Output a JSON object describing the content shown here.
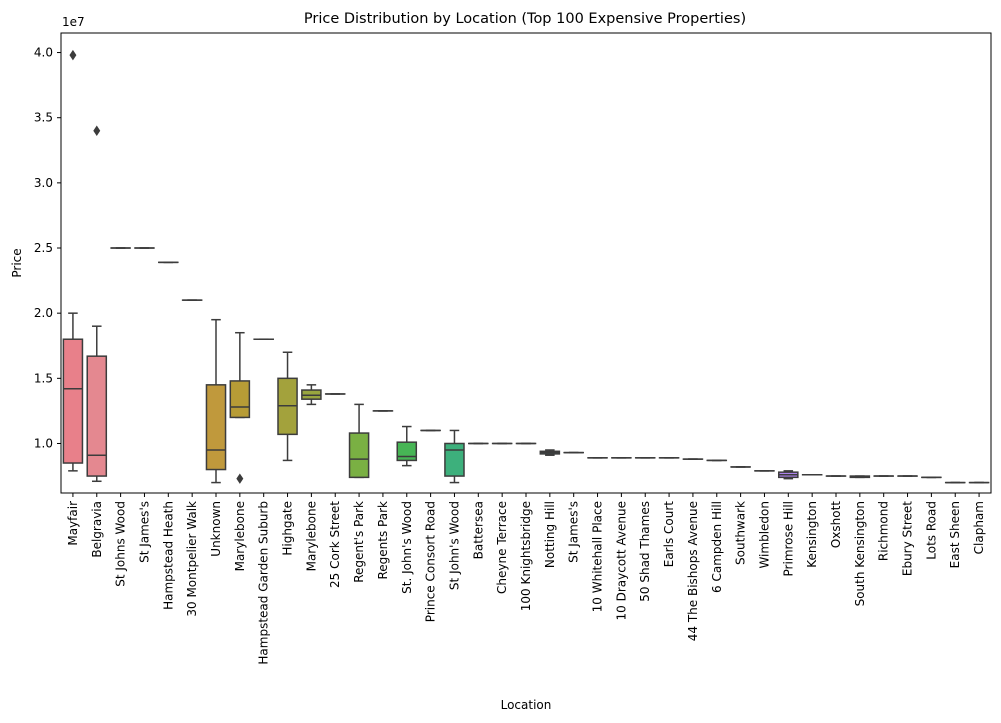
{
  "chart_data": {
    "type": "box",
    "title": "Price Distribution by Location (Top 100 Expensive Properties)",
    "xlabel": "Location",
    "ylabel": "Price",
    "y_offset_label": "1e7",
    "ylim": [
      6200000,
      41500000
    ],
    "yticks": [
      10000000,
      15000000,
      20000000,
      25000000,
      30000000,
      35000000,
      40000000
    ],
    "ytick_labels": [
      "1.0",
      "1.5",
      "2.0",
      "2.5",
      "3.0",
      "3.5",
      "4.0"
    ],
    "grid": false,
    "legend": false,
    "categories": [
      "Mayfair",
      "Belgravia",
      "St Johns Wood",
      "St James's",
      "Hampstead Heath",
      "30 Montpelier Walk",
      "Unknown",
      "Marylebone",
      "Hampstead Garden Suburb",
      "Highgate",
      "Marylebone",
      "25 Cork Street",
      "Regent's Park",
      "Regents Park",
      "St. John's Wood",
      "Prince Consort Road",
      "St John's Wood",
      "Battersea",
      "Cheyne Terrace",
      "100 Knightsbridge",
      "Notting Hill",
      "St James's",
      "10 Whitehall Place",
      "10 Draycott Avenue",
      "50 Shad Thames",
      "Earls Court",
      "44 The Bishops Avenue",
      "6 Campden Hill",
      "Southwark",
      "Wimbledon",
      "Primrose Hill",
      "Kensington",
      "Oxshott",
      "South Kensington",
      "Richmond",
      "Ebury Street",
      "Lots Road",
      "East Sheen",
      "Clapham"
    ],
    "boxes": [
      {
        "whisker_low": 7900000,
        "q1": 8500000,
        "median": 14200000,
        "q3": 18000000,
        "whisker_high": 20000000,
        "outliers": [
          39800000
        ],
        "color": "#e8808a"
      },
      {
        "whisker_low": 7100000,
        "q1": 7500000,
        "median": 9100000,
        "q3": 16700000,
        "whisker_high": 19000000,
        "outliers": [
          34000000
        ],
        "color": "#e48890"
      },
      {
        "whisker_low": 25000000,
        "q1": 25000000,
        "median": 25000000,
        "q3": 25000000,
        "whisker_high": 25000000,
        "outliers": [],
        "color": "#dd8a7c"
      },
      {
        "whisker_low": 25000000,
        "q1": 25000000,
        "median": 25000000,
        "q3": 25000000,
        "whisker_high": 25000000,
        "outliers": [],
        "color": "#d68f6a"
      },
      {
        "whisker_low": 23900000,
        "q1": 23900000,
        "median": 23900000,
        "q3": 23900000,
        "whisker_high": 23900000,
        "outliers": [],
        "color": "#cf935a"
      },
      {
        "whisker_low": 21000000,
        "q1": 21000000,
        "median": 21000000,
        "q3": 21000000,
        "whisker_high": 21000000,
        "outliers": [],
        "color": "#c8964c"
      },
      {
        "whisker_low": 7000000,
        "q1": 8000000,
        "median": 9500000,
        "q3": 14500000,
        "whisker_high": 19500000,
        "outliers": [],
        "color": "#c0993c"
      },
      {
        "whisker_low": 12000000,
        "q1": 12000000,
        "median": 12800000,
        "q3": 14800000,
        "whisker_high": 18500000,
        "outliers": [
          7300000
        ],
        "color": "#b79c36"
      },
      {
        "whisker_low": 18000000,
        "q1": 18000000,
        "median": 18000000,
        "q3": 18000000,
        "whisker_high": 18000000,
        "outliers": [],
        "color": "#ad9f36"
      },
      {
        "whisker_low": 8700000,
        "q1": 10700000,
        "median": 12900000,
        "q3": 15000000,
        "whisker_high": 17000000,
        "outliers": [],
        "color": "#a3a23c"
      },
      {
        "whisker_low": 13000000,
        "q1": 13400000,
        "median": 13700000,
        "q3": 14100000,
        "whisker_high": 14500000,
        "outliers": [],
        "color": "#98a63f"
      },
      {
        "whisker_low": 13800000,
        "q1": 13800000,
        "median": 13800000,
        "q3": 13800000,
        "whisker_high": 13800000,
        "outliers": [],
        "color": "#8da942"
      },
      {
        "whisker_low": 7400000,
        "q1": 7400000,
        "median": 8800000,
        "q3": 10800000,
        "whisker_high": 13000000,
        "outliers": [],
        "color": "#7ab043"
      },
      {
        "whisker_low": 12500000,
        "q1": 12500000,
        "median": 12500000,
        "q3": 12500000,
        "whisker_high": 12500000,
        "outliers": [],
        "color": "#62b44a"
      },
      {
        "whisker_low": 8300000,
        "q1": 8700000,
        "median": 9000000,
        "q3": 10100000,
        "whisker_high": 11300000,
        "outliers": [],
        "color": "#47b555"
      },
      {
        "whisker_low": 11000000,
        "q1": 11000000,
        "median": 11000000,
        "q3": 11000000,
        "whisker_high": 11000000,
        "outliers": [],
        "color": "#3cb46a"
      },
      {
        "whisker_low": 7000000,
        "q1": 7500000,
        "median": 9500000,
        "q3": 10000000,
        "whisker_high": 11000000,
        "outliers": [],
        "color": "#3db07c"
      },
      {
        "whisker_low": 10000000,
        "q1": 10000000,
        "median": 10000000,
        "q3": 10000000,
        "whisker_high": 10000000,
        "outliers": [],
        "color": "#3dad8a"
      },
      {
        "whisker_low": 10000000,
        "q1": 10000000,
        "median": 10000000,
        "q3": 10000000,
        "whisker_high": 10000000,
        "outliers": [],
        "color": "#3eab95"
      },
      {
        "whisker_low": 10000000,
        "q1": 10000000,
        "median": 10000000,
        "q3": 10000000,
        "whisker_high": 10000000,
        "outliers": [],
        "color": "#3fa99f"
      },
      {
        "whisker_low": 9100000,
        "q1": 9200000,
        "median": 9300000,
        "q3": 9400000,
        "whisker_high": 9500000,
        "outliers": [],
        "color": "#40a8a8"
      },
      {
        "whisker_low": 9300000,
        "q1": 9300000,
        "median": 9300000,
        "q3": 9300000,
        "whisker_high": 9300000,
        "outliers": [],
        "color": "#41a6b0"
      },
      {
        "whisker_low": 8900000,
        "q1": 8900000,
        "median": 8900000,
        "q3": 8900000,
        "whisker_high": 8900000,
        "outliers": [],
        "color": "#43a4b9"
      },
      {
        "whisker_low": 8900000,
        "q1": 8900000,
        "median": 8900000,
        "q3": 8900000,
        "whisker_high": 8900000,
        "outliers": [],
        "color": "#45a2c2"
      },
      {
        "whisker_low": 8900000,
        "q1": 8900000,
        "median": 8900000,
        "q3": 8900000,
        "whisker_high": 8900000,
        "outliers": [],
        "color": "#48a0cc"
      },
      {
        "whisker_low": 8900000,
        "q1": 8900000,
        "median": 8900000,
        "q3": 8900000,
        "whisker_high": 8900000,
        "outliers": [],
        "color": "#4d9dd7"
      },
      {
        "whisker_low": 8800000,
        "q1": 8800000,
        "median": 8800000,
        "q3": 8800000,
        "whisker_high": 8800000,
        "outliers": [],
        "color": "#5a98e0"
      },
      {
        "whisker_low": 8700000,
        "q1": 8700000,
        "median": 8700000,
        "q3": 8700000,
        "whisker_high": 8700000,
        "outliers": [],
        "color": "#6f92e5"
      },
      {
        "whisker_low": 8200000,
        "q1": 8200000,
        "median": 8200000,
        "q3": 8200000,
        "whisker_high": 8200000,
        "outliers": [],
        "color": "#858ce8"
      },
      {
        "whisker_low": 7900000,
        "q1": 7900000,
        "median": 7900000,
        "q3": 7900000,
        "whisker_high": 7900000,
        "outliers": [],
        "color": "#9a86ea"
      },
      {
        "whisker_low": 7300000,
        "q1": 7400000,
        "median": 7600000,
        "q3": 7800000,
        "whisker_high": 7900000,
        "outliers": [],
        "color": "#ac81ea"
      },
      {
        "whisker_low": 7600000,
        "q1": 7600000,
        "median": 7600000,
        "q3": 7600000,
        "whisker_high": 7600000,
        "outliers": [],
        "color": "#bc7de8"
      },
      {
        "whisker_low": 7500000,
        "q1": 7500000,
        "median": 7500000,
        "q3": 7500000,
        "whisker_high": 7500000,
        "outliers": [],
        "color": "#c978e2"
      },
      {
        "whisker_low": 7400000,
        "q1": 7400000,
        "median": 7450000,
        "q3": 7500000,
        "whisker_high": 7500000,
        "outliers": [],
        "color": "#d474da"
      },
      {
        "whisker_low": 7500000,
        "q1": 7500000,
        "median": 7500000,
        "q3": 7500000,
        "whisker_high": 7500000,
        "outliers": [],
        "color": "#dd72cf"
      },
      {
        "whisker_low": 7500000,
        "q1": 7500000,
        "median": 7500000,
        "q3": 7500000,
        "whisker_high": 7500000,
        "outliers": [],
        "color": "#e372c2"
      },
      {
        "whisker_low": 7400000,
        "q1": 7400000,
        "median": 7400000,
        "q3": 7400000,
        "whisker_high": 7400000,
        "outliers": [],
        "color": "#e674b4"
      },
      {
        "whisker_low": 7000000,
        "q1": 7000000,
        "median": 7000000,
        "q3": 7000000,
        "whisker_high": 7000000,
        "outliers": [],
        "color": "#e877a6"
      },
      {
        "whisker_low": 7000000,
        "q1": 7000000,
        "median": 7000000,
        "q3": 7000000,
        "whisker_high": 7000000,
        "outliers": [],
        "color": "#e97b99"
      }
    ]
  }
}
